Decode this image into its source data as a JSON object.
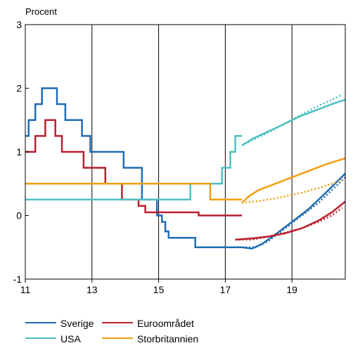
{
  "chart_data": {
    "type": "line",
    "ylabel": "Procent",
    "xlim": [
      11,
      20.6
    ],
    "ylim": [
      -1,
      3
    ],
    "x_ticks": [
      "11",
      "13",
      "15",
      "17",
      "19"
    ],
    "x_tick_values": [
      11,
      13,
      15,
      17,
      19
    ],
    "y_ticks": [
      "-1",
      "0",
      "1",
      "2",
      "3"
    ],
    "y_tick_values": [
      -1,
      0,
      1,
      2,
      3
    ],
    "grid": "vertical",
    "legend_position": "bottom",
    "series": [
      {
        "name": "Sverige",
        "color": "#1f6cb4",
        "step": true,
        "points": [
          [
            11,
            1.25
          ],
          [
            11.1,
            1.25
          ],
          [
            11.1,
            1.5
          ],
          [
            11.3,
            1.5
          ],
          [
            11.3,
            1.75
          ],
          [
            11.5,
            1.75
          ],
          [
            11.5,
            2.0
          ],
          [
            11.95,
            2.0
          ],
          [
            11.95,
            1.75
          ],
          [
            12.2,
            1.75
          ],
          [
            12.2,
            1.5
          ],
          [
            12.7,
            1.5
          ],
          [
            12.7,
            1.25
          ],
          [
            12.95,
            1.25
          ],
          [
            12.95,
            1.0
          ],
          [
            13.95,
            1.0
          ],
          [
            13.95,
            0.75
          ],
          [
            14.5,
            0.75
          ],
          [
            14.5,
            0.25
          ],
          [
            14.95,
            0.25
          ],
          [
            14.95,
            0.0
          ],
          [
            15.1,
            0.0
          ],
          [
            15.1,
            -0.1
          ],
          [
            15.2,
            -0.1
          ],
          [
            15.2,
            -0.25
          ],
          [
            15.3,
            -0.25
          ],
          [
            15.3,
            -0.35
          ],
          [
            16.1,
            -0.35
          ],
          [
            16.1,
            -0.5
          ],
          [
            17.5,
            -0.5
          ]
        ]
      },
      {
        "name": "Euroområdet",
        "color": "#b91f2e",
        "step": true,
        "points": [
          [
            11,
            1.0
          ],
          [
            11.3,
            1.0
          ],
          [
            11.3,
            1.25
          ],
          [
            11.6,
            1.25
          ],
          [
            11.6,
            1.5
          ],
          [
            11.9,
            1.5
          ],
          [
            11.9,
            1.25
          ],
          [
            12.1,
            1.25
          ],
          [
            12.1,
            1.0
          ],
          [
            12.75,
            1.0
          ],
          [
            12.75,
            0.75
          ],
          [
            13.4,
            0.75
          ],
          [
            13.4,
            0.5
          ],
          [
            13.9,
            0.5
          ],
          [
            13.9,
            0.25
          ],
          [
            14.4,
            0.25
          ],
          [
            14.4,
            0.15
          ],
          [
            14.6,
            0.15
          ],
          [
            14.6,
            0.05
          ],
          [
            14.8,
            0.05
          ],
          [
            14.8,
            0.05
          ],
          [
            16.2,
            0.05
          ],
          [
            16.2,
            0.0
          ],
          [
            17.5,
            0.0
          ]
        ]
      },
      {
        "name": "USA",
        "color": "#4dbfc4",
        "step": true,
        "points": [
          [
            11,
            0.25
          ],
          [
            15.95,
            0.25
          ],
          [
            15.95,
            0.5
          ],
          [
            16.9,
            0.5
          ],
          [
            16.9,
            0.75
          ],
          [
            17.15,
            0.75
          ],
          [
            17.15,
            1.0
          ],
          [
            17.3,
            1.0
          ],
          [
            17.3,
            1.25
          ],
          [
            17.5,
            1.25
          ]
        ]
      },
      {
        "name": "Storbritannien",
        "color": "#f29e0f",
        "step": true,
        "points": [
          [
            11,
            0.5
          ],
          [
            16.55,
            0.5
          ],
          [
            16.55,
            0.25
          ],
          [
            17.5,
            0.25
          ]
        ]
      }
    ],
    "forecasts": [
      {
        "series": "Sverige",
        "color": "#1f6cb4",
        "solid": [
          [
            17.5,
            -0.5
          ],
          [
            17.8,
            -0.52
          ],
          [
            18.1,
            -0.45
          ],
          [
            18.5,
            -0.3
          ],
          [
            19,
            -0.1
          ],
          [
            19.5,
            0.1
          ],
          [
            20,
            0.35
          ],
          [
            20.6,
            0.66
          ]
        ],
        "dotted": [
          [
            17.5,
            -0.5
          ],
          [
            17.9,
            -0.5
          ],
          [
            18.3,
            -0.4
          ],
          [
            18.8,
            -0.2
          ],
          [
            19.3,
            0.0
          ],
          [
            19.8,
            0.2
          ],
          [
            20.3,
            0.45
          ],
          [
            20.6,
            0.6
          ]
        ]
      },
      {
        "series": "Euroområdet",
        "color": "#b91f2e",
        "solid": [
          [
            17.3,
            -0.38
          ],
          [
            17.8,
            -0.36
          ],
          [
            18.3,
            -0.33
          ],
          [
            18.8,
            -0.28
          ],
          [
            19.3,
            -0.2
          ],
          [
            19.8,
            -0.08
          ],
          [
            20.2,
            0.05
          ],
          [
            20.6,
            0.22
          ]
        ],
        "dotted": [
          [
            17.3,
            -0.38
          ],
          [
            17.8,
            -0.38
          ],
          [
            18.3,
            -0.33
          ],
          [
            18.8,
            -0.27
          ],
          [
            19.3,
            -0.2
          ],
          [
            19.8,
            -0.1
          ],
          [
            20.2,
            0.0
          ],
          [
            20.5,
            0.12
          ]
        ]
      },
      {
        "series": "USA",
        "color": "#4dbfc4",
        "solid": [
          [
            17.5,
            1.1
          ],
          [
            17.8,
            1.2
          ],
          [
            18.2,
            1.3
          ],
          [
            18.7,
            1.42
          ],
          [
            19.2,
            1.55
          ],
          [
            19.7,
            1.65
          ],
          [
            20.2,
            1.75
          ],
          [
            20.6,
            1.82
          ]
        ],
        "dotted": [
          [
            17.5,
            1.1
          ],
          [
            17.8,
            1.18
          ],
          [
            18.2,
            1.28
          ],
          [
            18.7,
            1.42
          ],
          [
            19.2,
            1.56
          ],
          [
            19.7,
            1.7
          ],
          [
            20.2,
            1.82
          ],
          [
            20.5,
            1.9
          ]
        ]
      },
      {
        "series": "Storbritannien",
        "color": "#f29e0f",
        "solid": [
          [
            17.5,
            0.2
          ],
          [
            17.7,
            0.3
          ],
          [
            18.0,
            0.4
          ],
          [
            18.5,
            0.5
          ],
          [
            19,
            0.6
          ],
          [
            19.5,
            0.7
          ],
          [
            20,
            0.8
          ],
          [
            20.6,
            0.9
          ]
        ],
        "dotted": [
          [
            17.5,
            0.2
          ],
          [
            17.9,
            0.22
          ],
          [
            18.3,
            0.25
          ],
          [
            18.8,
            0.3
          ],
          [
            19.3,
            0.36
          ],
          [
            19.8,
            0.43
          ],
          [
            20.2,
            0.5
          ],
          [
            20.5,
            0.56
          ]
        ]
      }
    ]
  }
}
